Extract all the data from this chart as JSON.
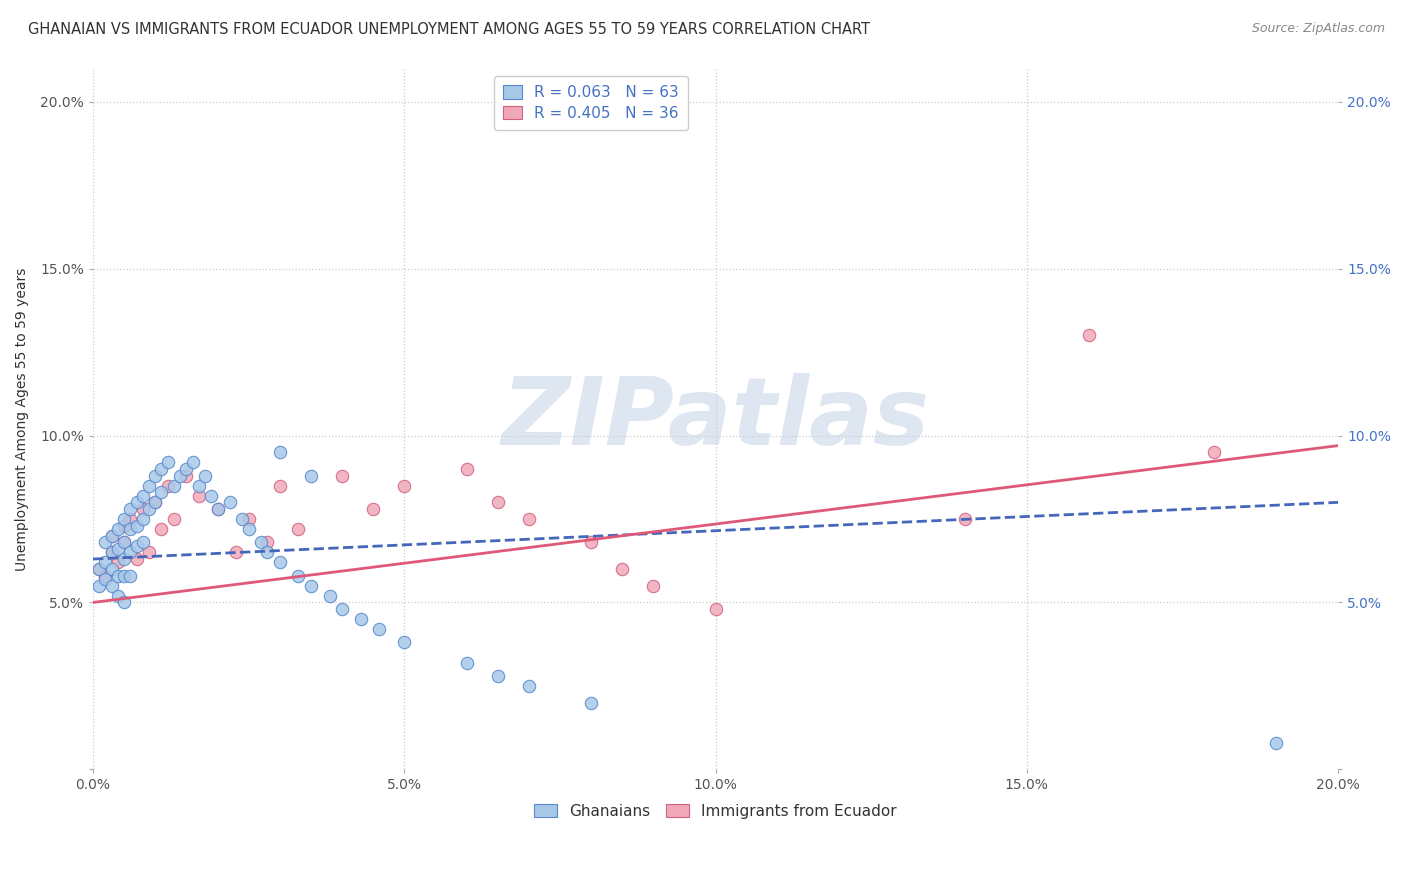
{
  "title": "GHANAIAN VS IMMIGRANTS FROM ECUADOR UNEMPLOYMENT AMONG AGES 55 TO 59 YEARS CORRELATION CHART",
  "source": "Source: ZipAtlas.com",
  "ylabel": "Unemployment Among Ages 55 to 59 years",
  "xlim": [
    0.0,
    0.2
  ],
  "ylim": [
    0.0,
    0.21
  ],
  "xticks": [
    0.0,
    0.05,
    0.1,
    0.15,
    0.2
  ],
  "yticks": [
    0.0,
    0.05,
    0.1,
    0.15,
    0.2
  ],
  "xtick_labels": [
    "0.0%",
    "5.0%",
    "10.0%",
    "15.0%",
    "20.0%"
  ],
  "ytick_labels": [
    "",
    "5.0%",
    "10.0%",
    "15.0%",
    "20.0%"
  ],
  "background_color": "#ffffff",
  "watermark": "ZIPatlas",
  "watermark_color": "#c8d8e8",
  "ghanaian_color": "#a8c8e8",
  "ghanaian_edge": "#5588cc",
  "ghanaian_line_color": "#4466bb",
  "ecuador_color": "#f0a8b8",
  "ecuador_edge": "#d06080",
  "ecuador_line_color": "#e05878",
  "series": [
    {
      "name": "Ghanaians",
      "R": 0.063,
      "N": 63,
      "x": [
        0.001,
        0.001,
        0.002,
        0.002,
        0.002,
        0.003,
        0.003,
        0.003,
        0.003,
        0.004,
        0.004,
        0.004,
        0.004,
        0.005,
        0.005,
        0.005,
        0.005,
        0.005,
        0.006,
        0.006,
        0.006,
        0.006,
        0.007,
        0.007,
        0.007,
        0.008,
        0.008,
        0.008,
        0.009,
        0.009,
        0.01,
        0.01,
        0.011,
        0.011,
        0.012,
        0.013,
        0.014,
        0.015,
        0.016,
        0.017,
        0.018,
        0.019,
        0.02,
        0.022,
        0.024,
        0.025,
        0.027,
        0.028,
        0.03,
        0.033,
        0.035,
        0.038,
        0.04,
        0.043,
        0.046,
        0.05,
        0.06,
        0.065,
        0.07,
        0.08,
        0.03,
        0.035,
        0.19
      ],
      "y": [
        0.06,
        0.055,
        0.068,
        0.062,
        0.057,
        0.065,
        0.07,
        0.06,
        0.055,
        0.072,
        0.066,
        0.058,
        0.052,
        0.075,
        0.068,
        0.063,
        0.058,
        0.05,
        0.078,
        0.072,
        0.065,
        0.058,
        0.08,
        0.073,
        0.067,
        0.082,
        0.075,
        0.068,
        0.085,
        0.078,
        0.088,
        0.08,
        0.09,
        0.083,
        0.092,
        0.085,
        0.088,
        0.09,
        0.092,
        0.085,
        0.088,
        0.082,
        0.078,
        0.08,
        0.075,
        0.072,
        0.068,
        0.065,
        0.062,
        0.058,
        0.055,
        0.052,
        0.048,
        0.045,
        0.042,
        0.038,
        0.032,
        0.028,
        0.025,
        0.02,
        0.095,
        0.088,
        0.008
      ],
      "trend_x0": 0.0,
      "trend_x1": 0.2,
      "trend_y0": 0.063,
      "trend_y1": 0.08
    },
    {
      "name": "Immigrants from Ecuador",
      "R": 0.405,
      "N": 36,
      "x": [
        0.001,
        0.002,
        0.003,
        0.003,
        0.004,
        0.005,
        0.005,
        0.006,
        0.007,
        0.008,
        0.009,
        0.01,
        0.011,
        0.012,
        0.013,
        0.015,
        0.017,
        0.02,
        0.023,
        0.025,
        0.028,
        0.03,
        0.033,
        0.04,
        0.045,
        0.05,
        0.06,
        0.065,
        0.07,
        0.08,
        0.085,
        0.09,
        0.1,
        0.14,
        0.16,
        0.18
      ],
      "y": [
        0.06,
        0.058,
        0.065,
        0.07,
        0.062,
        0.068,
        0.073,
        0.075,
        0.063,
        0.078,
        0.065,
        0.08,
        0.072,
        0.085,
        0.075,
        0.088,
        0.082,
        0.078,
        0.065,
        0.075,
        0.068,
        0.085,
        0.072,
        0.088,
        0.078,
        0.085,
        0.09,
        0.08,
        0.075,
        0.068,
        0.06,
        0.055,
        0.048,
        0.075,
        0.13,
        0.095
      ],
      "trend_x0": 0.0,
      "trend_x1": 0.2,
      "trend_y0": 0.05,
      "trend_y1": 0.097
    }
  ]
}
